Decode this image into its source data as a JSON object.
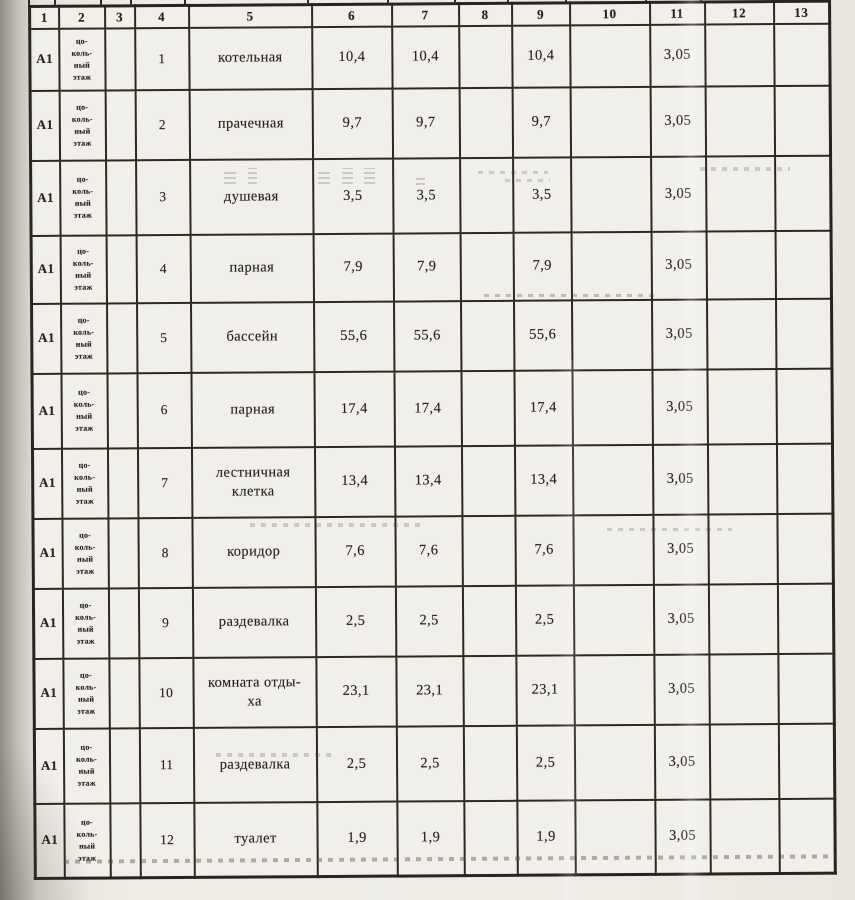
{
  "table": {
    "columns": [
      "1",
      "2",
      "3",
      "4",
      "5",
      "6",
      "7",
      "8",
      "9",
      "10",
      "11",
      "12",
      "13"
    ],
    "rows": [
      [
        "А1",
        "цо-\nколь-\nный\nэтаж",
        "",
        "1",
        "котельная",
        "10,4",
        "10,4",
        "",
        "10,4",
        "",
        "3,05",
        "",
        ""
      ],
      [
        "А1",
        "цо-\nколь-\nный\nэтаж",
        "",
        "2",
        "прачечная",
        "9,7",
        "9,7",
        "",
        "9,7",
        "",
        "3,05",
        "",
        ""
      ],
      [
        "А1",
        "цо-\nколь-\nный\nэтаж",
        "",
        "3",
        "душевая",
        "3,5",
        "3,5",
        "",
        "3,5",
        "",
        "3,05",
        "",
        ""
      ],
      [
        "А1",
        "цо-\nколь-\nный\nэтаж",
        "",
        "4",
        "парная",
        "7,9",
        "7,9",
        "",
        "7,9",
        "",
        "3,05",
        "",
        ""
      ],
      [
        "А1",
        "цо-\nколь-\nный\nэтаж",
        "",
        "5",
        "бассейн",
        "55,6",
        "55,6",
        "",
        "55,6",
        "",
        "3,05",
        "",
        ""
      ],
      [
        "А1",
        "цо-\nколь-\nный\nэтаж",
        "",
        "6",
        "парная",
        "17,4",
        "17,4",
        "",
        "17,4",
        "",
        "3,05",
        "",
        ""
      ],
      [
        "А1",
        "цо-\nколь-\nный\nэтаж",
        "",
        "7",
        "лестничная\nклетка",
        "13,4",
        "13,4",
        "",
        "13,4",
        "",
        "3,05",
        "",
        ""
      ],
      [
        "А1",
        "цо-\nколь-\nный\nэтаж",
        "",
        "8",
        "коридор",
        "7,6",
        "7,6",
        "",
        "7,6",
        "",
        "3,05",
        "",
        ""
      ],
      [
        "А1",
        "цо-\nколь-\nный\nэтаж",
        "",
        "9",
        "раздевалка",
        "2,5",
        "2,5",
        "",
        "2,5",
        "",
        "3,05",
        "",
        ""
      ],
      [
        "А1",
        "цо-\nколь-\nный\nэтаж",
        "",
        "10",
        "комната отды-\nха",
        "23,1",
        "23,1",
        "",
        "23,1",
        "",
        "3,05",
        "",
        ""
      ],
      [
        "А1",
        "цо-\nколь-\nный\nэтаж",
        "",
        "11",
        "раздевалка",
        "2,5",
        "2,5",
        "",
        "2,5",
        "",
        "3,05",
        "",
        ""
      ],
      [
        "А1",
        "цо-\nколь-\nный\nэтаж",
        "",
        "12",
        "туалет",
        "1,9",
        "1,9",
        "",
        "1,9",
        "",
        "3,05",
        "",
        ""
      ]
    ],
    "colors": {
      "paper": "#eeebe5",
      "grid_line": "#2c2822",
      "ink": "#26231e"
    }
  }
}
